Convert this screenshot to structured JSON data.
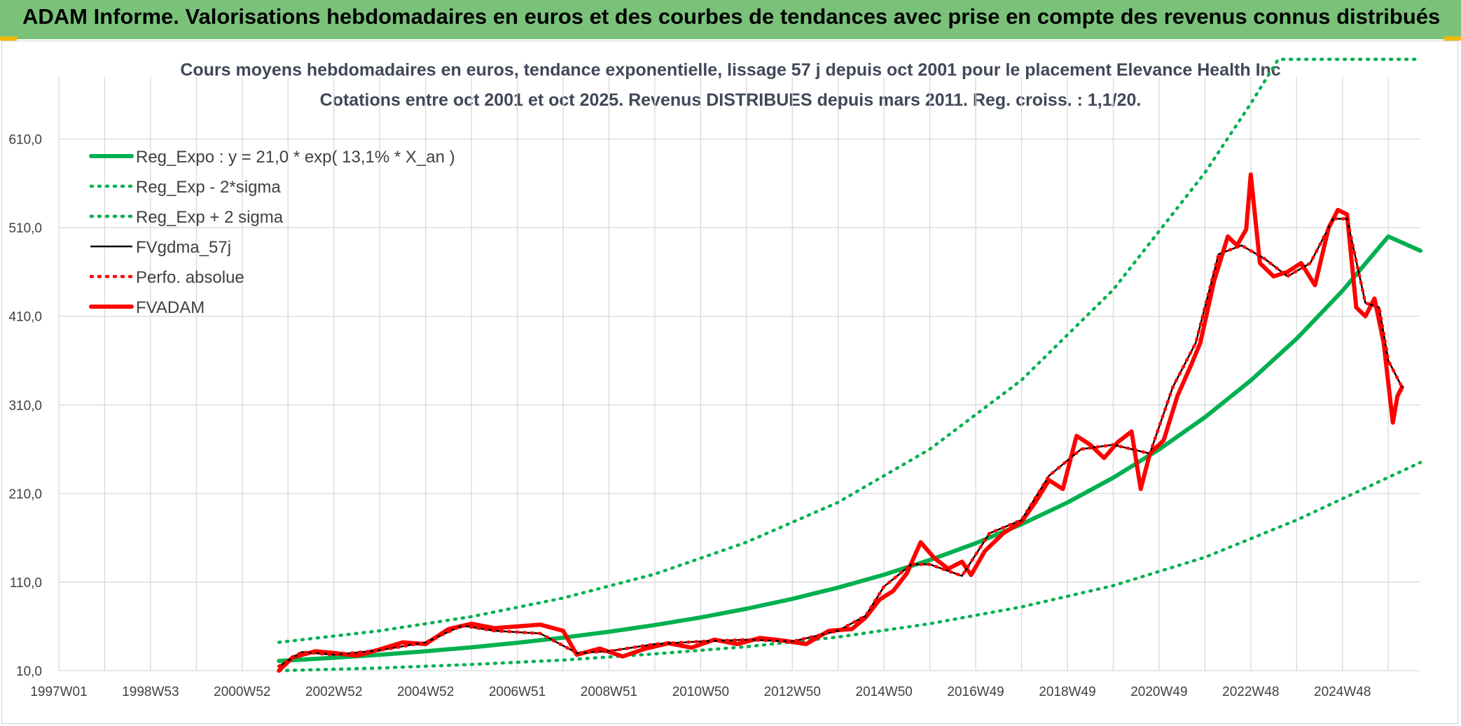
{
  "banner": {
    "title": "ADAM Informe. Valorisations hebdomadaires en euros et des courbes de tendances avec prise en compte des revenus connus distribués"
  },
  "colors": {
    "banner_bg": "#7ac27a",
    "green": "#00b050",
    "black": "#000000",
    "red": "#ff0000",
    "grid": "#d9d9d9"
  },
  "chart_data": {
    "type": "line",
    "title": "Cours moyens hebdomadaires en euros, tendance exponentielle, lissage 57 j depuis oct 2001 pour le placement Elevance Health Inc",
    "subtitle": "Cotations entre oct 2001 et oct 2025. Revenus DISTRIBUES depuis mars 2011. Reg. croiss. : 1,1/20.",
    "xlabel": "",
    "ylabel": "",
    "ylim": [
      10,
      680
    ],
    "xlim": [
      1997.0,
      2026.7
    ],
    "grid": true,
    "legend_position": "top-left",
    "yticks": [
      "610,0",
      "510,0",
      "410,0",
      "310,0",
      "210,0",
      "110,0",
      "10,0"
    ],
    "ytick_values": [
      610,
      510,
      410,
      310,
      210,
      110,
      10
    ],
    "xticks": [
      "1997W01",
      "1998W53",
      "2000W52",
      "2002W52",
      "2004W52",
      "2006W51",
      "2008W51",
      "2010W50",
      "2012W50",
      "2014W50",
      "2016W49",
      "2018W49",
      "2020W49",
      "2022W48",
      "2024W48"
    ],
    "xtick_values": [
      1997.0,
      1999.0,
      2001.0,
      2003.0,
      2005.0,
      2007.0,
      2009.0,
      2011.0,
      2013.0,
      2015.0,
      2017.0,
      2019.0,
      2021.0,
      2023.0,
      2025.0
    ],
    "series": [
      {
        "name": "Reg_Expo : y = 21,0 * exp( 13,1% *  X_an )",
        "style": "solid-thick",
        "color": "#00b050",
        "x": [
          2001.8,
          2003.0,
          2004.0,
          2005.0,
          2006.0,
          2007.0,
          2008.0,
          2009.0,
          2010.0,
          2011.0,
          2012.0,
          2013.0,
          2014.0,
          2015.0,
          2016.0,
          2017.0,
          2018.0,
          2019.0,
          2020.0,
          2021.0,
          2022.0,
          2023.0,
          2024.0,
          2025.0,
          2026.0,
          2026.7
        ],
        "y": [
          21,
          24.6,
          28,
          32,
          36.4,
          41.5,
          47.3,
          53.9,
          61.5,
          70.1,
          79.9,
          91.1,
          103.8,
          118.3,
          134.9,
          153.8,
          175.3,
          199.8,
          227.8,
          259.7,
          296,
          337.5,
          384.7,
          438.6,
          500,
          484
        ]
      },
      {
        "name": "Reg_Exp - 2*sigma",
        "style": "dotted",
        "color": "#00b050",
        "x": [
          2001.8,
          2004.0,
          2006.0,
          2008.0,
          2010.0,
          2012.0,
          2014.0,
          2016.0,
          2018.0,
          2020.0,
          2022.0,
          2024.0,
          2026.7
        ],
        "y": [
          10,
          13,
          17,
          22,
          29,
          37,
          48,
          63,
          82,
          106,
          138,
          180,
          245
        ]
      },
      {
        "name": "Reg_Exp + 2 sigma",
        "style": "dotted",
        "color": "#00b050",
        "x": [
          2001.8,
          2004.0,
          2006.0,
          2008.0,
          2010.0,
          2012.0,
          2014.0,
          2016.0,
          2018.0,
          2020.0,
          2022.0,
          2023.0,
          2023.6,
          2026.7
        ],
        "y": [
          42,
          55,
          71,
          92,
          119,
          155,
          200,
          260,
          338,
          440,
          572,
          650,
          700,
          700
        ]
      },
      {
        "name": "FVgdma_57j",
        "style": "solid",
        "color": "#000000",
        "x": [
          2001.8,
          2002.3,
          2003.0,
          2004.0,
          2005.0,
          2005.8,
          2006.5,
          2007.5,
          2008.3,
          2009.0,
          2010.0,
          2011.0,
          2012.0,
          2013.0,
          2014.0,
          2014.6,
          2015.0,
          2015.6,
          2016.0,
          2016.7,
          2017.3,
          2018.0,
          2018.6,
          2019.3,
          2020.0,
          2020.8,
          2021.3,
          2021.8,
          2022.3,
          2022.8,
          2023.3,
          2023.8,
          2024.3,
          2024.8,
          2025.1,
          2025.5,
          2025.8,
          2026.0,
          2026.3
        ],
        "y": [
          15,
          31,
          28,
          33,
          42,
          61,
          55,
          52,
          30,
          32,
          40,
          43,
          45,
          43,
          55,
          72,
          105,
          130,
          130,
          117,
          165,
          180,
          230,
          260,
          265,
          255,
          330,
          380,
          480,
          490,
          475,
          455,
          470,
          520,
          520,
          425,
          420,
          360,
          330
        ]
      },
      {
        "name": "Perfo. absolue",
        "style": "dotted",
        "color": "#ff0000",
        "x": [
          2001.8,
          2002.3,
          2003.0,
          2004.0,
          2005.0,
          2005.8,
          2006.5,
          2007.5,
          2008.3,
          2009.0,
          2010.0,
          2011.0,
          2012.0,
          2013.0,
          2014.0,
          2014.6,
          2015.0,
          2015.6,
          2016.0,
          2016.7,
          2017.3,
          2018.0,
          2018.6,
          2019.3,
          2020.0,
          2020.8,
          2021.3,
          2021.8,
          2022.3,
          2022.8,
          2023.3,
          2023.8,
          2024.3,
          2024.8,
          2025.1,
          2025.5,
          2025.8,
          2026.0,
          2026.3
        ],
        "y": [
          15,
          31,
          28,
          33,
          42,
          61,
          55,
          52,
          30,
          32,
          40,
          43,
          45,
          43,
          55,
          72,
          105,
          130,
          130,
          117,
          165,
          180,
          230,
          260,
          265,
          255,
          330,
          380,
          480,
          490,
          475,
          455,
          470,
          520,
          520,
          425,
          420,
          360,
          330
        ]
      },
      {
        "name": "FVADAM",
        "style": "solid-thick",
        "color": "#ff0000",
        "x": [
          2001.8,
          2002.1,
          2002.6,
          2003.0,
          2003.5,
          2004.0,
          2004.5,
          2005.0,
          2005.5,
          2006.0,
          2006.5,
          2007.0,
          2007.5,
          2008.0,
          2008.3,
          2008.8,
          2009.3,
          2009.8,
          2010.3,
          2010.8,
          2011.3,
          2011.8,
          2012.3,
          2012.8,
          2013.3,
          2013.8,
          2014.3,
          2014.6,
          2014.9,
          2015.2,
          2015.5,
          2015.8,
          2016.1,
          2016.4,
          2016.7,
          2016.9,
          2017.2,
          2017.6,
          2018.0,
          2018.3,
          2018.6,
          2018.9,
          2019.2,
          2019.5,
          2019.8,
          2020.1,
          2020.4,
          2020.6,
          2020.8,
          2021.1,
          2021.4,
          2021.7,
          2021.9,
          2022.2,
          2022.5,
          2022.7,
          2022.9,
          2023.0,
          2023.2,
          2023.5,
          2023.8,
          2024.1,
          2024.4,
          2024.7,
          2024.9,
          2025.1,
          2025.3,
          2025.5,
          2025.7,
          2025.9,
          2026.1,
          2026.2,
          2026.3
        ],
        "y": [
          10,
          25,
          32,
          30,
          27,
          34,
          42,
          40,
          57,
          63,
          58,
          60,
          62,
          55,
          28,
          35,
          26,
          35,
          41,
          36,
          45,
          40,
          47,
          44,
          40,
          55,
          57,
          70,
          90,
          100,
          120,
          155,
          137,
          125,
          133,
          118,
          145,
          165,
          178,
          200,
          225,
          215,
          275,
          265,
          250,
          268,
          280,
          215,
          255,
          270,
          320,
          355,
          380,
          450,
          500,
          490,
          508,
          570,
          470,
          455,
          460,
          470,
          445,
          510,
          530,
          525,
          420,
          410,
          430,
          380,
          290,
          320,
          330
        ]
      }
    ]
  }
}
